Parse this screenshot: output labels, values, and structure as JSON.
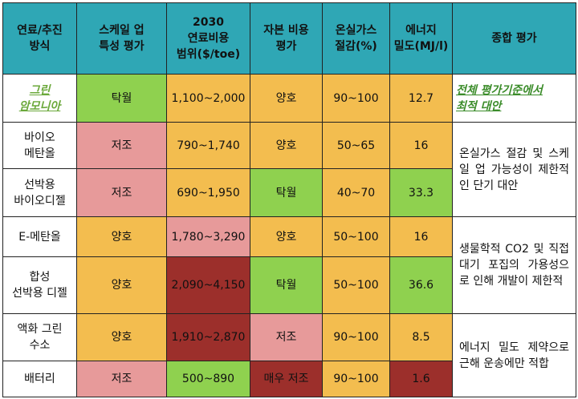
{
  "headers": [
    "연료/추진\n방식",
    "스케일 업\n특성 평가",
    "2030\n연료비용\n범위($/toe)",
    "자본 비용\n평가",
    "온실가스\n절감(%)",
    "에너지\n밀도(MJ/l)",
    "종합 평가"
  ],
  "rows": [
    {
      "fuel": "그린\n암모니아",
      "scale": "탁월",
      "cost": "1,100~2,000",
      "capex": "양호",
      "ghg": "90~100",
      "density": "12.7"
    },
    {
      "fuel": "바이오\n메탄올",
      "scale": "저조",
      "cost": "790~1,740",
      "capex": "양호",
      "ghg": "50~65",
      "density": "16"
    },
    {
      "fuel": "선박용\n바이오디젤",
      "scale": "저조",
      "cost": "690~1,950",
      "capex": "탁월",
      "ghg": "40~70",
      "density": "33.3"
    },
    {
      "fuel": "E-메탄올",
      "scale": "양호",
      "cost": "1,780~3,290",
      "capex": "양호",
      "ghg": "50~100",
      "density": "16"
    },
    {
      "fuel": "합성\n선박용 디젤",
      "scale": "양호",
      "cost": "2,090~4,150",
      "capex": "탁월",
      "ghg": "50~100",
      "density": "36.6"
    },
    {
      "fuel": "액화 그린\n수소",
      "scale": "양호",
      "cost": "1,910~2,870",
      "capex": "저조",
      "ghg": "90~100",
      "density": "8.5"
    },
    {
      "fuel": "배터리",
      "scale": "저조",
      "cost": "500~890",
      "capex": "매우 저조",
      "ghg": "90~100",
      "density": "1.6"
    }
  ],
  "summaries": [
    "전체  평가기준에서\n최적 대안",
    "온실가스 절감 및 스케일 업 가능성이 제한적인 단기 대안",
    "생물학적 CO2 및 직접 대기 포집의 가용성으로 인해 개발이 제한적",
    "에너지 밀도 제약으로 근해 운송에만 적합"
  ],
  "colors": {
    "header": "#2fa7b5",
    "good_green": "#8fd14f",
    "fair_orange": "#f3bd4f",
    "poor_pink": "#e79a9a",
    "bad_red": "#9c2f2b",
    "highlight_text": "#3b8c2a"
  }
}
